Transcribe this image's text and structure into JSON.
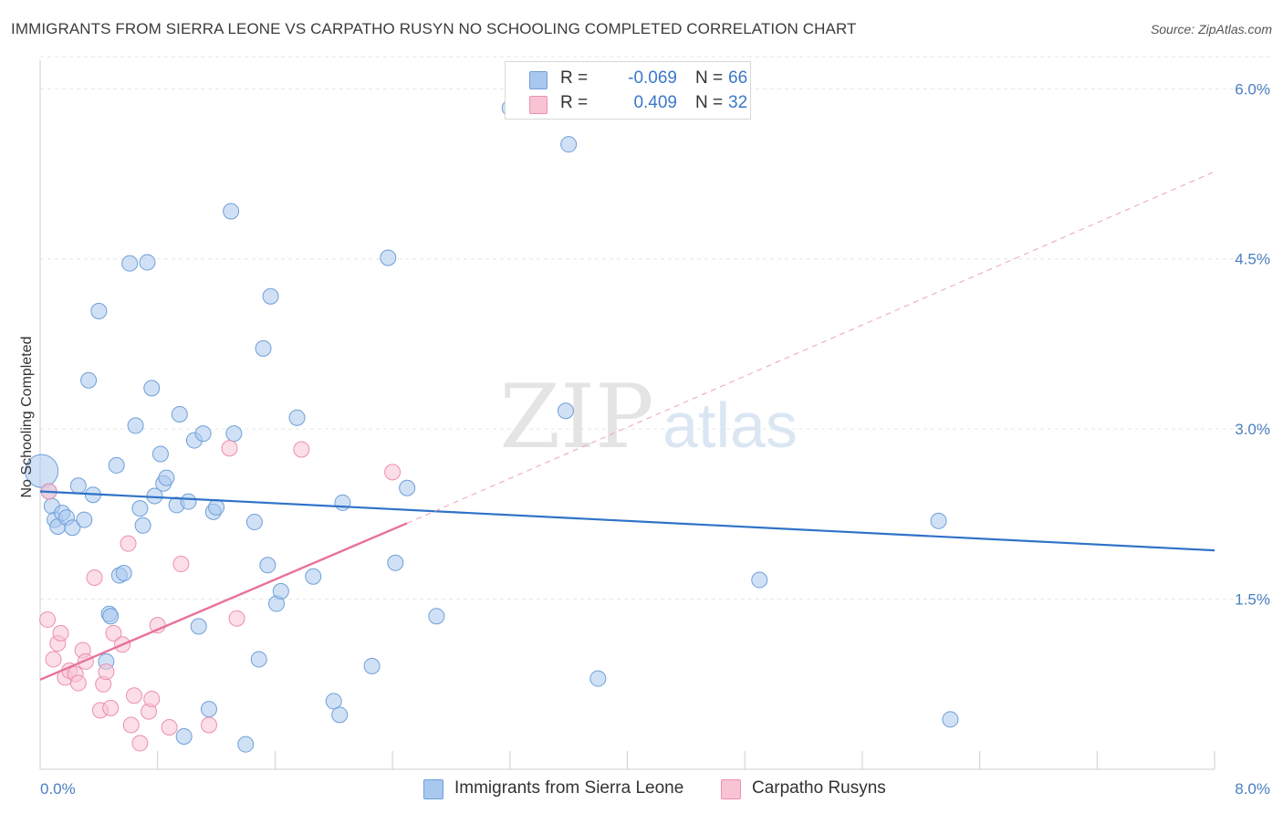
{
  "title": "IMMIGRANTS FROM SIERRA LEONE VS CARPATHO RUSYN NO SCHOOLING COMPLETED CORRELATION CHART",
  "source": "Source: ZipAtlas.com",
  "watermark": {
    "zip": "ZIP",
    "atlas": "atlas"
  },
  "legend": {
    "r_label": "R =",
    "n_label": "N =",
    "rows": [
      {
        "series": "Immigrants from Sierra Leone",
        "r": "-0.069",
        "n": "66",
        "color": "#a9c8ef",
        "stroke": "#6f9fd8"
      },
      {
        "series": "Carpatho Rusyns",
        "r": "0.409",
        "n": "32",
        "color": "#f8c3d3",
        "stroke": "#ec8fb0"
      }
    ]
  },
  "chart_data": {
    "type": "scatter",
    "title": "IMMIGRANTS FROM SIERRA LEONE VS CARPATHO RUSYN NO SCHOOLING COMPLETED CORRELATION CHART",
    "xlabel": "",
    "ylabel": "No Schooling Completed",
    "xlim": [
      0,
      8.0
    ],
    "ylim": [
      0,
      6.3
    ],
    "x_tick_labels": [
      "0.0%",
      "8.0%"
    ],
    "y_ticks": [
      1.5,
      3.0,
      4.5,
      6.0
    ],
    "y_tick_labels": [
      "1.5%",
      "3.0%",
      "4.5%",
      "6.0%"
    ],
    "series": [
      {
        "name": "Immigrants from Sierra Leone",
        "color": "#a9c8ef",
        "stroke": "#6f9fd8",
        "points": [
          [
            0.01,
            2.63
          ],
          [
            0.06,
            2.45
          ],
          [
            0.08,
            2.32
          ],
          [
            0.1,
            2.2
          ],
          [
            0.12,
            2.14
          ],
          [
            0.15,
            2.26
          ],
          [
            0.18,
            2.22
          ],
          [
            0.22,
            2.13
          ],
          [
            0.26,
            2.5
          ],
          [
            0.3,
            2.2
          ],
          [
            0.33,
            3.43
          ],
          [
            0.36,
            2.42
          ],
          [
            0.4,
            4.04
          ],
          [
            0.45,
            0.95
          ],
          [
            0.47,
            1.37
          ],
          [
            0.48,
            1.35
          ],
          [
            0.52,
            2.68
          ],
          [
            0.54,
            1.71
          ],
          [
            0.57,
            1.73
          ],
          [
            0.61,
            4.46
          ],
          [
            0.65,
            3.03
          ],
          [
            0.68,
            2.3
          ],
          [
            0.7,
            2.15
          ],
          [
            0.73,
            4.47
          ],
          [
            0.76,
            3.36
          ],
          [
            0.78,
            2.41
          ],
          [
            0.82,
            2.78
          ],
          [
            0.84,
            2.52
          ],
          [
            0.86,
            2.57
          ],
          [
            0.93,
            2.33
          ],
          [
            0.95,
            3.13
          ],
          [
            0.98,
            0.29
          ],
          [
            1.01,
            2.36
          ],
          [
            1.05,
            2.9
          ],
          [
            1.08,
            1.26
          ],
          [
            1.11,
            2.96
          ],
          [
            1.15,
            0.53
          ],
          [
            1.18,
            2.27
          ],
          [
            1.2,
            2.31
          ],
          [
            1.3,
            4.92
          ],
          [
            1.32,
            2.96
          ],
          [
            1.4,
            0.22
          ],
          [
            1.46,
            2.18
          ],
          [
            1.49,
            0.97
          ],
          [
            1.52,
            3.71
          ],
          [
            1.55,
            1.8
          ],
          [
            1.57,
            4.17
          ],
          [
            1.61,
            1.46
          ],
          [
            1.64,
            1.57
          ],
          [
            1.75,
            3.1
          ],
          [
            1.86,
            1.7
          ],
          [
            2.0,
            0.6
          ],
          [
            2.04,
            0.48
          ],
          [
            2.06,
            2.35
          ],
          [
            2.26,
            0.91
          ],
          [
            2.37,
            4.51
          ],
          [
            2.42,
            1.82
          ],
          [
            2.5,
            2.48
          ],
          [
            2.7,
            1.35
          ],
          [
            3.2,
            5.83
          ],
          [
            3.58,
            3.16
          ],
          [
            3.6,
            5.51
          ],
          [
            3.8,
            0.8
          ],
          [
            4.9,
            1.67
          ],
          [
            6.12,
            2.19
          ],
          [
            6.2,
            0.44
          ]
        ],
        "trend": {
          "x0": 0.0,
          "y0": 2.45,
          "x1": 8.0,
          "y1": 1.93
        }
      },
      {
        "name": "Carpatho Rusyns",
        "color": "#f8c3d3",
        "stroke": "#ec8fb0",
        "points": [
          [
            0.05,
            1.32
          ],
          [
            0.06,
            2.45
          ],
          [
            0.09,
            0.97
          ],
          [
            0.12,
            1.11
          ],
          [
            0.14,
            1.2
          ],
          [
            0.17,
            0.81
          ],
          [
            0.2,
            0.87
          ],
          [
            0.24,
            0.84
          ],
          [
            0.26,
            0.76
          ],
          [
            0.29,
            1.05
          ],
          [
            0.31,
            0.95
          ],
          [
            0.37,
            1.69
          ],
          [
            0.41,
            0.52
          ],
          [
            0.43,
            0.75
          ],
          [
            0.45,
            0.86
          ],
          [
            0.48,
            0.54
          ],
          [
            0.5,
            1.2
          ],
          [
            0.56,
            1.1
          ],
          [
            0.6,
            1.99
          ],
          [
            0.62,
            0.39
          ],
          [
            0.64,
            0.65
          ],
          [
            0.68,
            0.23
          ],
          [
            0.74,
            0.51
          ],
          [
            0.76,
            0.62
          ],
          [
            0.8,
            1.27
          ],
          [
            0.88,
            0.37
          ],
          [
            0.96,
            1.81
          ],
          [
            1.15,
            0.39
          ],
          [
            1.29,
            2.83
          ],
          [
            1.34,
            1.33
          ],
          [
            1.78,
            2.82
          ],
          [
            2.4,
            2.62
          ]
        ],
        "trend": {
          "x0": 0.0,
          "y0": 0.79,
          "x1": 2.5,
          "y1": 2.17
        },
        "trend_extension": {
          "x0": 2.5,
          "y0": 2.17,
          "x1": 8.0,
          "y1": 5.27
        }
      }
    ],
    "bubble_sizes": {
      "default": 1,
      "large_point_index_series0": 0
    }
  }
}
